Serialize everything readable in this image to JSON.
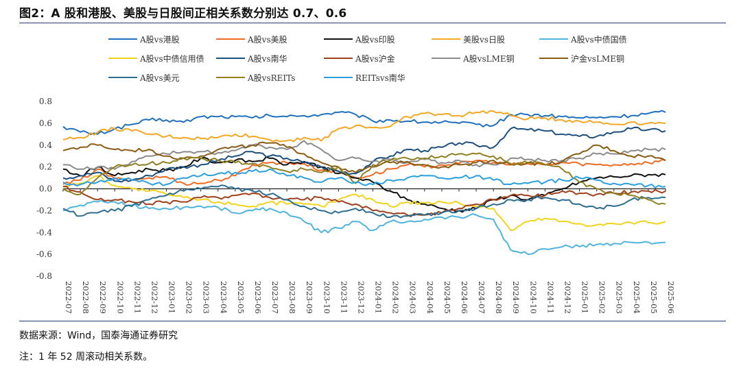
{
  "header": {
    "title": "图2：A 股和港股、美股与日股间正相关系数分别达 0.7、0.6"
  },
  "footer": {
    "source": "数据来源：Wind，国泰海通证券研究",
    "note": "注：1 年 52 周滚动相关系数。"
  },
  "colors": {
    "s1": "#1f6fbf",
    "s2": "#f26a22",
    "s3": "#111111",
    "s4": "#f5a623",
    "s5": "#4fb3e0",
    "s6": "#f2d31b",
    "s7": "#1b4f80",
    "s8": "#9e3f1a",
    "s9": "#8a8a8a",
    "s10": "#8a5a12",
    "s11": "#2b6d8f",
    "s12": "#8f7f1f",
    "s13": "#2a9fe0"
  },
  "chart_data": {
    "type": "line",
    "title": "图2：A 股和港股、美股与日股间正相关系数分别达 0.7、0.6",
    "xlabel": "",
    "ylabel": "",
    "ylim": [
      -0.8,
      0.8
    ],
    "yticks": [
      "0.8",
      "0.6",
      "0.4",
      "0.2",
      "0.0",
      "-0.2",
      "-0.4",
      "-0.6",
      "-0.8"
    ],
    "categories": [
      "2022-07",
      "2022-08",
      "2022-09",
      "2022-10",
      "2022-11",
      "2022-12",
      "2023-01",
      "2023-02",
      "2023-03",
      "2023-04",
      "2023-05",
      "2023-06",
      "2023-07",
      "2023-08",
      "2023-09",
      "2023-10",
      "2023-11",
      "2023-12",
      "2024-01",
      "2024-02",
      "2024-03",
      "2024-04",
      "2024-05",
      "2024-06",
      "2024-07",
      "2024-08",
      "2024-09",
      "2024-10",
      "2024-11",
      "2024-12",
      "2025-01",
      "2025-02",
      "2025-03",
      "2025-04",
      "2025-05",
      "2025-06"
    ],
    "series": [
      {
        "name": "A股vs港股",
        "values": [
          0.57,
          0.52,
          0.5,
          0.55,
          0.59,
          0.63,
          0.63,
          0.61,
          0.66,
          0.66,
          0.66,
          0.65,
          0.67,
          0.66,
          0.67,
          0.68,
          0.7,
          0.68,
          0.62,
          0.63,
          0.62,
          0.61,
          0.61,
          0.6,
          0.59,
          0.58,
          0.68,
          0.68,
          0.67,
          0.66,
          0.65,
          0.65,
          0.66,
          0.67,
          0.69,
          0.7
        ]
      },
      {
        "name": "A股vs美股",
        "values": [
          0.04,
          0.08,
          0.18,
          0.09,
          0.08,
          0.1,
          0.11,
          0.05,
          0.05,
          0.08,
          0.12,
          0.22,
          0.24,
          0.24,
          0.23,
          0.17,
          0.16,
          0.1,
          0.13,
          0.18,
          0.22,
          0.2,
          0.22,
          0.23,
          0.26,
          0.24,
          0.22,
          0.23,
          0.22,
          0.24,
          0.23,
          0.22,
          0.22,
          0.23,
          0.24,
          0.26
        ]
      },
      {
        "name": "A股vs印股",
        "values": [
          0.18,
          0.12,
          0.2,
          0.12,
          0.15,
          0.18,
          0.17,
          0.2,
          0.28,
          0.24,
          0.26,
          0.25,
          0.28,
          0.22,
          0.25,
          0.2,
          0.14,
          0.1,
          0.06,
          -0.02,
          -0.1,
          -0.14,
          -0.18,
          -0.2,
          -0.18,
          -0.1,
          -0.06,
          -0.1,
          -0.06,
          0.0,
          0.06,
          0.1,
          0.11,
          0.12,
          0.13,
          0.13
        ]
      },
      {
        "name": "美股vs日股",
        "values": [
          0.45,
          0.47,
          0.52,
          0.55,
          0.53,
          0.5,
          0.48,
          0.47,
          0.46,
          0.47,
          0.5,
          0.48,
          0.45,
          0.44,
          0.47,
          0.44,
          0.55,
          0.58,
          0.56,
          0.57,
          0.66,
          0.69,
          0.68,
          0.67,
          0.7,
          0.71,
          0.67,
          0.64,
          0.65,
          0.63,
          0.62,
          0.61,
          0.59,
          0.61,
          0.6,
          0.6
        ]
      },
      {
        "name": "A股vs中债国债",
        "values": [
          -0.2,
          -0.15,
          -0.12,
          -0.12,
          -0.15,
          -0.18,
          -0.18,
          -0.17,
          -0.16,
          -0.17,
          -0.22,
          -0.2,
          -0.18,
          -0.22,
          -0.3,
          -0.4,
          -0.36,
          -0.3,
          -0.38,
          -0.3,
          -0.3,
          -0.28,
          -0.26,
          -0.26,
          -0.24,
          -0.28,
          -0.56,
          -0.6,
          -0.55,
          -0.53,
          -0.53,
          -0.51,
          -0.5,
          -0.49,
          -0.49,
          -0.49
        ]
      },
      {
        "name": "A股vs中债信用债",
        "values": [
          0.02,
          0.05,
          0.12,
          0.03,
          0.0,
          -0.02,
          -0.05,
          -0.08,
          -0.1,
          -0.12,
          -0.14,
          -0.16,
          -0.12,
          -0.14,
          -0.14,
          -0.16,
          -0.1,
          -0.05,
          -0.1,
          -0.16,
          -0.12,
          -0.13,
          -0.12,
          -0.13,
          -0.16,
          -0.18,
          -0.38,
          -0.3,
          -0.27,
          -0.3,
          -0.32,
          -0.33,
          -0.32,
          -0.31,
          -0.31,
          -0.3
        ]
      },
      {
        "name": "A股vs南华",
        "values": [
          0.1,
          0.12,
          0.15,
          0.07,
          0.08,
          0.12,
          0.18,
          0.2,
          0.22,
          0.26,
          0.3,
          0.34,
          0.3,
          0.28,
          0.24,
          0.2,
          0.16,
          0.14,
          0.25,
          0.3,
          0.36,
          0.35,
          0.38,
          0.42,
          0.4,
          0.38,
          0.55,
          0.54,
          0.53,
          0.5,
          0.48,
          0.48,
          0.52,
          0.55,
          0.54,
          0.53
        ]
      },
      {
        "name": "A股vs沪金",
        "values": [
          0.02,
          -0.03,
          -0.1,
          -0.1,
          -0.12,
          -0.14,
          -0.12,
          -0.12,
          -0.08,
          -0.08,
          -0.06,
          -0.04,
          -0.08,
          -0.1,
          -0.1,
          -0.08,
          -0.12,
          -0.14,
          -0.2,
          -0.22,
          -0.24,
          -0.24,
          -0.22,
          -0.18,
          -0.14,
          -0.1,
          -0.06,
          -0.06,
          -0.06,
          -0.02,
          -0.04,
          -0.05,
          -0.04,
          -0.03,
          -0.02,
          -0.02
        ]
      },
      {
        "name": "A股vsLME铜",
        "values": [
          0.22,
          0.18,
          0.2,
          0.18,
          0.25,
          0.3,
          0.32,
          0.34,
          0.34,
          0.33,
          0.35,
          0.4,
          0.38,
          0.36,
          0.44,
          0.36,
          0.26,
          0.28,
          0.25,
          0.27,
          0.24,
          0.27,
          0.24,
          0.26,
          0.22,
          0.22,
          0.28,
          0.27,
          0.26,
          0.26,
          0.28,
          0.32,
          0.32,
          0.35,
          0.36,
          0.36
        ]
      },
      {
        "name": "沪金vsLME铜",
        "values": [
          0.35,
          0.38,
          0.4,
          0.36,
          0.35,
          0.36,
          0.3,
          0.28,
          0.3,
          0.36,
          0.38,
          0.4,
          0.42,
          0.38,
          0.32,
          0.24,
          0.2,
          0.15,
          0.2,
          0.24,
          0.25,
          0.22,
          0.2,
          0.22,
          0.24,
          0.26,
          0.22,
          0.24,
          0.22,
          0.25,
          0.32,
          0.4,
          0.35,
          0.3,
          0.3,
          0.26
        ]
      },
      {
        "name": "A股vs美元",
        "values": [
          -0.18,
          -0.25,
          -0.22,
          -0.2,
          -0.16,
          -0.1,
          -0.06,
          -0.02,
          0.0,
          0.02,
          0.0,
          -0.02,
          -0.05,
          -0.1,
          -0.16,
          -0.2,
          -0.22,
          -0.18,
          -0.22,
          -0.26,
          -0.25,
          -0.24,
          -0.22,
          -0.2,
          -0.18,
          -0.14,
          -0.1,
          -0.1,
          -0.08,
          -0.1,
          -0.14,
          -0.18,
          -0.16,
          -0.1,
          -0.08,
          -0.08
        ]
      },
      {
        "name": "A股vsREITs",
        "values": [
          0.0,
          -0.05,
          0.1,
          0.2,
          0.22,
          0.23,
          0.24,
          0.28,
          0.28,
          0.26,
          0.24,
          0.23,
          0.2,
          0.16,
          0.18,
          0.15,
          0.2,
          0.05,
          0.22,
          0.26,
          0.28,
          0.28,
          0.3,
          0.32,
          0.32,
          0.3,
          0.23,
          0.24,
          0.22,
          0.18,
          0.06,
          0.0,
          -0.04,
          -0.06,
          -0.1,
          -0.14
        ]
      },
      {
        "name": "REITsvs南华",
        "values": [
          0.06,
          0.04,
          0.06,
          0.1,
          0.08,
          0.05,
          0.04,
          0.1,
          0.12,
          0.14,
          0.15,
          0.16,
          0.18,
          0.12,
          0.1,
          0.06,
          0.1,
          0.06,
          0.04,
          0.08,
          0.1,
          0.12,
          0.1,
          0.1,
          0.12,
          0.08,
          0.04,
          0.05,
          0.06,
          0.08,
          0.1,
          0.08,
          0.05,
          0.04,
          0.03,
          0.02
        ]
      }
    ]
  }
}
